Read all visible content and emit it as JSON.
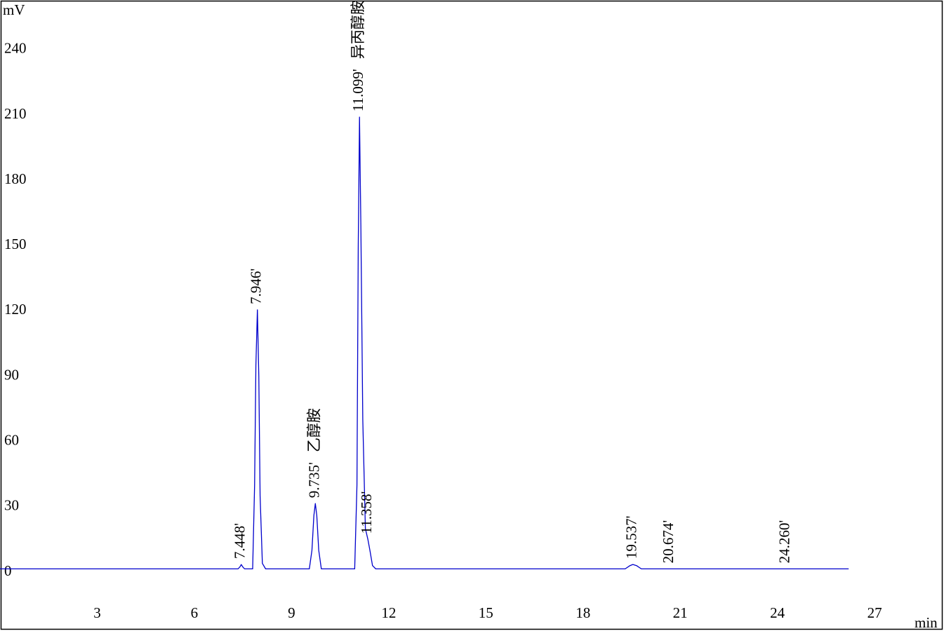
{
  "chart_data": {
    "type": "line",
    "y_unit": "mV",
    "x_unit": "min",
    "xlim": [
      0,
      29.1
    ],
    "ylim": [
      -26.4,
      262.8
    ],
    "xticks": [
      3,
      6,
      9,
      12,
      15,
      18,
      21,
      24,
      27
    ],
    "yticks": [
      0,
      30,
      60,
      90,
      120,
      150,
      180,
      210,
      240
    ],
    "color": "#0000cc",
    "x": [
      0,
      7.35,
      7.41,
      7.448,
      7.49,
      7.55,
      7.8,
      7.86,
      7.9,
      7.946,
      7.99,
      8.03,
      8.1,
      8.2,
      9.55,
      9.63,
      9.69,
      9.735,
      9.78,
      9.84,
      9.92,
      10.95,
      11.02,
      11.06,
      11.099,
      11.14,
      11.2,
      11.28,
      11.358,
      11.42,
      11.5,
      11.6,
      19.3,
      19.45,
      19.537,
      19.65,
      19.8,
      26.2
    ],
    "y": [
      1.5,
      1.5,
      2.5,
      3.5,
      2.5,
      1.5,
      1.5,
      40,
      95,
      120.5,
      90,
      35,
      4,
      1.5,
      1.5,
      10,
      26,
      31.5,
      26,
      10,
      1.5,
      1.5,
      40,
      150,
      209,
      160,
      70,
      20,
      15,
      10,
      3,
      1.5,
      1.5,
      3,
      3.5,
      3,
      1.5,
      1.5
    ],
    "peaks": {
      "retention_times": [
        7.448,
        7.946,
        9.735,
        11.099,
        11.358,
        19.537,
        20.674,
        24.26
      ],
      "heights": [
        3.5,
        120.5,
        31.5,
        209,
        15,
        3.5,
        1.5,
        1.5
      ],
      "labels": [
        "7.448'",
        "7.946'",
        "9.735'",
        "11.099'",
        "11.358'",
        "19.537'",
        "20.674'",
        "24.260'"
      ],
      "names": [
        null,
        null,
        "乙醇胺",
        "异丙醇胺",
        null,
        null,
        null,
        null
      ]
    }
  }
}
